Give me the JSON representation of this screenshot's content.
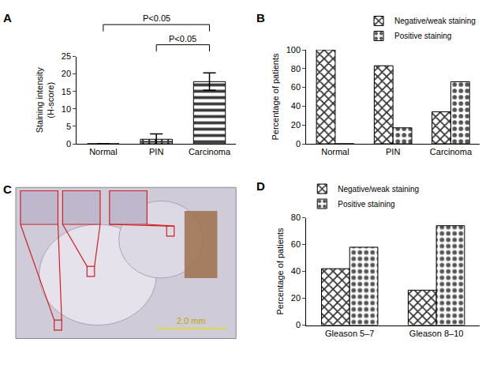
{
  "chart_data": [
    {
      "type": "bar",
      "title": "A",
      "y_label": "Staining intensity\n(H-score)",
      "categories": [
        "Normal",
        "PIN",
        "Carcinoma"
      ],
      "values": [
        0,
        1.3,
        17.8
      ],
      "errors": [
        0,
        1.5,
        2.5
      ],
      "color": "#333333",
      "ylim": [
        0,
        25
      ],
      "yticks": [
        0,
        5,
        10,
        15,
        20,
        25
      ],
      "grid": false,
      "annotations": [
        {
          "text": "P<0.05",
          "from": "Normal",
          "to": "Carcinoma"
        },
        {
          "text": "P<0.05",
          "from": "PIN",
          "to": "Carcinoma"
        }
      ]
    },
    {
      "type": "bar",
      "title": "B",
      "y_label": "Percentage of patients",
      "categories": [
        "Normal",
        "PIN",
        "Carcinoma"
      ],
      "series": [
        {
          "name": "Negative/weak staining",
          "color": "#333333",
          "values": [
            100,
            83,
            34
          ]
        },
        {
          "name": "Positive staining",
          "color": "#555555",
          "values": [
            0,
            17,
            66
          ]
        }
      ],
      "ylim": [
        0,
        100
      ],
      "yticks": [
        0,
        20,
        40,
        60,
        80,
        100
      ],
      "grid": false,
      "legend": "top right"
    },
    {
      "type": "bar",
      "title": "D",
      "y_label": "Percentage of patients",
      "categories": [
        "Gleason 5–7",
        "Gleason 8–10"
      ],
      "series": [
        {
          "name": "Negative/weak staining",
          "color": "#333333",
          "values": [
            42,
            26
          ]
        },
        {
          "name": "Positive staining",
          "color": "#555555",
          "values": [
            58,
            74
          ]
        }
      ],
      "ylim": [
        0,
        80
      ],
      "yticks": [
        0,
        20,
        40,
        60,
        80
      ],
      "grid": false,
      "legend": "top left"
    }
  ],
  "image_panel": {
    "title": "C",
    "scale_bar_label": "2.0 mm"
  }
}
